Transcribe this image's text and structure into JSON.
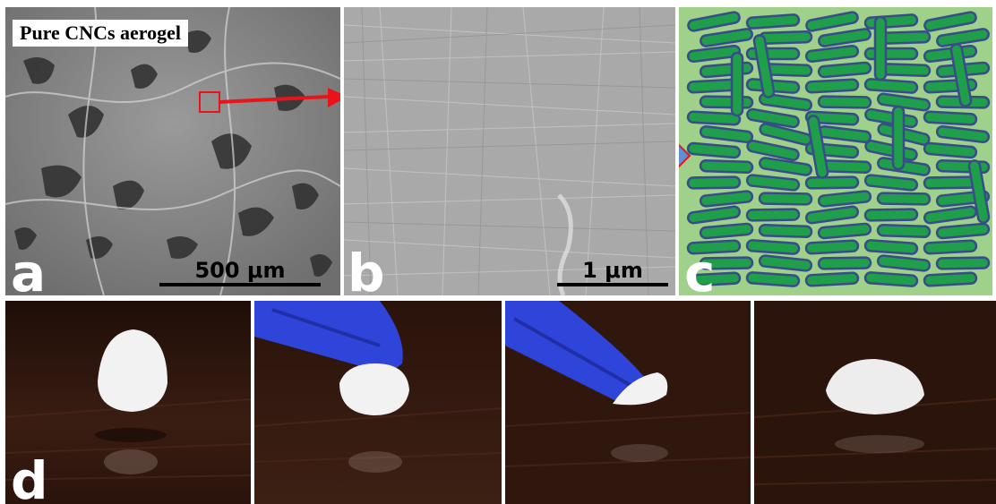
{
  "panel_a": {
    "letter": "a",
    "title": "Pure CNCs aerogel",
    "scale_label": "500 μm"
  },
  "panel_b": {
    "letter": "b",
    "scale_label": "1 μm"
  },
  "panel_c": {
    "letter": "c"
  },
  "panel_d": {
    "letter": "d"
  },
  "colors": {
    "sem_gray": "#8c8c8c",
    "arrow_red": "#e8141a",
    "schematic_background": "#9fd18b",
    "rod_fill": "#1f9f4a",
    "rod_outline": "#3a4b8c",
    "arrow_blue": "#5b8fd6",
    "table_wood": "#3a1d12",
    "glove_blue": "#2f44d8",
    "aerogel_white": "#f2f2f2"
  }
}
